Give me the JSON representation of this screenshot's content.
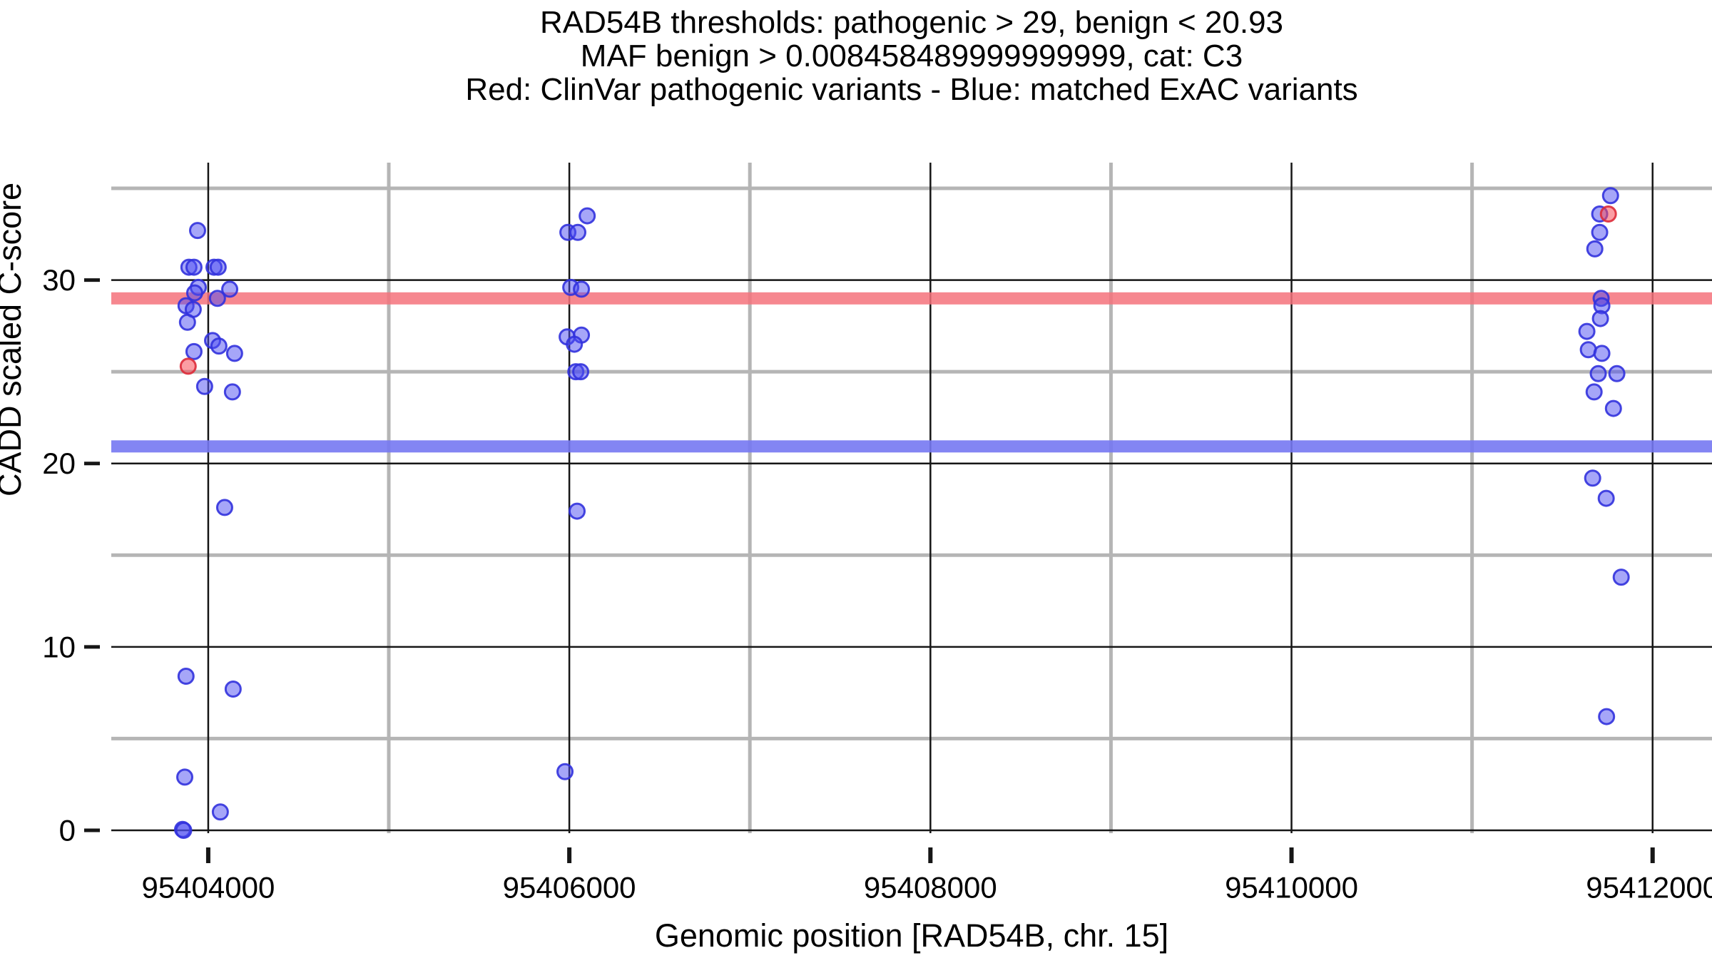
{
  "title": {
    "line1": "RAD54B thresholds: pathogenic > 29, benign < 20.93",
    "line2": "MAF benign > 0.008458489999999999, cat: C3",
    "line3": "Red: ClinVar pathogenic variants - Blue: matched ExAC variants"
  },
  "chart_data": {
    "type": "scatter",
    "xlabel": "Genomic position [RAD54B, chr. 15]",
    "ylabel": "CADD scaled C-score",
    "xlim": [
      95403463,
      95412329
    ],
    "ylim": [
      0,
      36.4
    ],
    "x_ticks": [
      95404000,
      95406000,
      95408000,
      95410000,
      95412000
    ],
    "x_minor_ticks": [
      95405000,
      95407000,
      95409000,
      95411000
    ],
    "y_ticks": [
      0,
      10,
      20,
      30
    ],
    "y_minor_ticks": [
      5,
      15,
      25,
      35
    ],
    "grid": true,
    "legend_position": "none",
    "thresholds": [
      {
        "name": "pathogenic-threshold",
        "value": 29,
        "color": "#f4727b",
        "opacity": 0.85
      },
      {
        "name": "benign-threshold",
        "value": 20.93,
        "color": "#7678f2",
        "opacity": 0.9
      }
    ],
    "series": [
      {
        "name": "matched ExAC variants",
        "color": "#4d4df2",
        "fill_opacity": 0.5,
        "stroke": "#3232dd",
        "points": [
          [
            95403941,
            32.7
          ],
          [
            95403893,
            30.7
          ],
          [
            95403921,
            30.7
          ],
          [
            95404032,
            30.7
          ],
          [
            95404055,
            30.7
          ],
          [
            95403945,
            29.6
          ],
          [
            95403925,
            29.3
          ],
          [
            95404119,
            29.5
          ],
          [
            95404051,
            29.0
          ],
          [
            95403877,
            28.6
          ],
          [
            95403917,
            28.4
          ],
          [
            95403885,
            27.7
          ],
          [
            95404024,
            26.7
          ],
          [
            95404059,
            26.4
          ],
          [
            95403921,
            26.1
          ],
          [
            95404146,
            26.0
          ],
          [
            95403980,
            24.2
          ],
          [
            95404134,
            23.9
          ],
          [
            95404091,
            17.6
          ],
          [
            95403877,
            8.4
          ],
          [
            95404138,
            7.7
          ],
          [
            95403870,
            2.9
          ],
          [
            95404067,
            1.0
          ],
          [
            95403858,
            0.05
          ],
          [
            95403864,
            0.0
          ],
          [
            95406099,
            33.5
          ],
          [
            95405992,
            32.6
          ],
          [
            95406047,
            32.6
          ],
          [
            95406008,
            29.6
          ],
          [
            95406067,
            29.5
          ],
          [
            95405988,
            26.9
          ],
          [
            95406067,
            27.0
          ],
          [
            95406028,
            26.5
          ],
          [
            95406036,
            25.0
          ],
          [
            95406063,
            25.0
          ],
          [
            95406043,
            17.4
          ],
          [
            95405976,
            3.2
          ],
          [
            95411767,
            34.6
          ],
          [
            95411707,
            33.6
          ],
          [
            95411707,
            32.6
          ],
          [
            95411680,
            31.7
          ],
          [
            95411715,
            29.0
          ],
          [
            95411719,
            28.6
          ],
          [
            95411711,
            27.9
          ],
          [
            95411636,
            27.2
          ],
          [
            95411644,
            26.2
          ],
          [
            95411719,
            26.0
          ],
          [
            95411699,
            24.9
          ],
          [
            95411802,
            24.9
          ],
          [
            95411676,
            23.9
          ],
          [
            95411783,
            23.0
          ],
          [
            95411668,
            19.2
          ],
          [
            95411743,
            18.1
          ],
          [
            95411826,
            13.8
          ],
          [
            95411745,
            6.2
          ]
        ]
      },
      {
        "name": "ClinVar pathogenic variants",
        "color": "#f84d57",
        "fill_opacity": 0.55,
        "stroke": "#dd2b38",
        "points": [
          [
            95403889,
            25.3
          ],
          [
            95411755,
            33.6
          ]
        ]
      }
    ]
  },
  "colors": {
    "major_grid": "#161616",
    "minor_grid": "#b5b5b5",
    "tick": "#161616",
    "text": "#000000"
  }
}
